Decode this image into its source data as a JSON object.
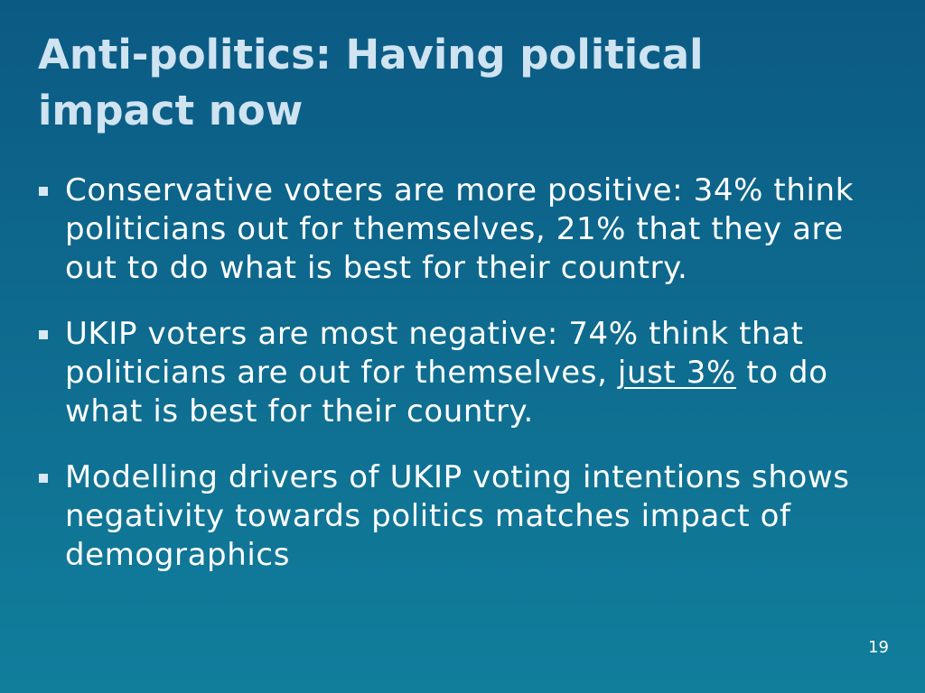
{
  "slide": {
    "title": "Anti-politics: Having political impact now",
    "page_number": "19"
  },
  "bullets": [
    {
      "text": "Conservative voters are more positive: 34% think politicians out for themselves, 21% that they are out to do what is best for their country."
    },
    {
      "before": "UKIP voters are most negative: 74% think that politicians are out for themselves, ",
      "emphasis": "just 3%",
      "after": " to do what is best for their country."
    },
    {
      "text": "Modelling drivers of UKIP voting intentions shows negativity towards politics matches impact of demographics"
    }
  ]
}
